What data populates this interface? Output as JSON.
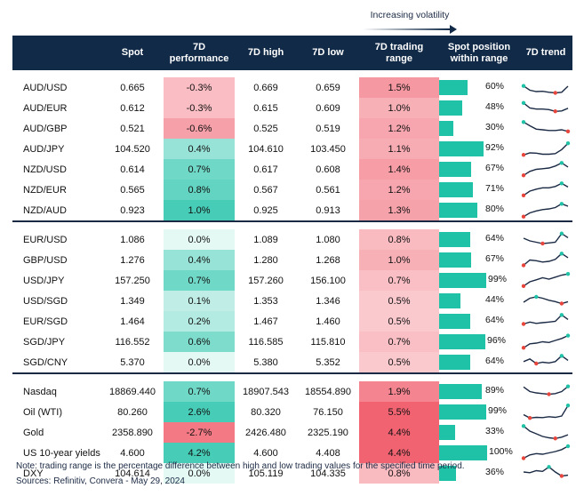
{
  "legend": {
    "label": "Increasing volatility"
  },
  "headers": {
    "spot": "Spot",
    "perf": "7D\nperformance",
    "high": "7D high",
    "low": "7D low",
    "range": "7D trading\nrange",
    "position": "Spot position\nwithin range",
    "trend": "7D trend"
  },
  "colors": {
    "header_bg": "#102a48",
    "bar": "#1fc2a7",
    "negative": "#f05b6a",
    "positive": "#1fc2a7",
    "sparkline": "#1b2a44",
    "max_marker": "#1fc2a7",
    "min_marker": "#e8453c"
  },
  "groups": [
    {
      "rows": [
        {
          "pair": "AUD/USD",
          "spot": "0.665",
          "perf": "-0.3%",
          "perf_value": -0.3,
          "high": "0.669",
          "low": "0.659",
          "range": "1.5%",
          "range_value": 1.5,
          "position": "60%",
          "position_value": 0.6,
          "trend": [
            0.62,
            0.3,
            0.2,
            0.22,
            0.15,
            0.1,
            0.15,
            0.6
          ]
        },
        {
          "pair": "AUD/EUR",
          "spot": "0.612",
          "perf": "-0.3%",
          "perf_value": -0.3,
          "high": "0.615",
          "low": "0.609",
          "range": "1.0%",
          "range_value": 1.0,
          "position": "48%",
          "position_value": 0.48,
          "trend": [
            0.88,
            0.5,
            0.42,
            0.42,
            0.38,
            0.25,
            0.28,
            0.48
          ]
        },
        {
          "pair": "AUD/GBP",
          "spot": "0.521",
          "perf": "-0.6%",
          "perf_value": -0.6,
          "high": "0.525",
          "low": "0.519",
          "range": "1.2%",
          "range_value": 1.2,
          "position": "30%",
          "position_value": 0.3,
          "trend": [
            0.98,
            0.7,
            0.45,
            0.4,
            0.35,
            0.35,
            0.4,
            0.28
          ]
        },
        {
          "pair": "AUD/JPY",
          "spot": "104.520",
          "perf": "0.4%",
          "perf_value": 0.4,
          "high": "104.610",
          "low": "103.450",
          "range": "1.1%",
          "range_value": 1.1,
          "position": "92%",
          "position_value": 0.92,
          "trend": [
            0.05,
            0.2,
            0.18,
            0.1,
            0.1,
            0.15,
            0.45,
            0.92
          ]
        },
        {
          "pair": "NZD/USD",
          "spot": "0.614",
          "perf": "0.7%",
          "perf_value": 0.7,
          "high": "0.617",
          "low": "0.608",
          "range": "1.4%",
          "range_value": 1.4,
          "position": "67%",
          "position_value": 0.67,
          "trend": [
            0.05,
            0.35,
            0.5,
            0.55,
            0.6,
            0.75,
            0.98,
            0.67
          ]
        },
        {
          "pair": "NZD/EUR",
          "spot": "0.565",
          "perf": "0.8%",
          "perf_value": 0.8,
          "high": "0.567",
          "low": "0.561",
          "range": "1.2%",
          "range_value": 1.2,
          "position": "71%",
          "position_value": 0.71,
          "trend": [
            0.08,
            0.4,
            0.55,
            0.65,
            0.65,
            0.75,
            0.98,
            0.71
          ]
        },
        {
          "pair": "NZD/AUD",
          "spot": "0.923",
          "perf": "1.0%",
          "perf_value": 1.0,
          "high": "0.925",
          "low": "0.913",
          "range": "1.3%",
          "range_value": 1.3,
          "position": "80%",
          "position_value": 0.8,
          "trend": [
            0.02,
            0.3,
            0.45,
            0.55,
            0.6,
            0.7,
            0.98,
            0.8
          ]
        }
      ]
    },
    {
      "rows": [
        {
          "pair": "EUR/USD",
          "spot": "1.086",
          "perf": "0.0%",
          "perf_value": 0.0,
          "high": "1.089",
          "low": "1.080",
          "range": "0.8%",
          "range_value": 0.8,
          "position": "64%",
          "position_value": 0.64,
          "trend": [
            0.6,
            0.4,
            0.3,
            0.2,
            0.25,
            0.3,
            0.95,
            0.64
          ]
        },
        {
          "pair": "GBP/USD",
          "spot": "1.276",
          "perf": "0.4%",
          "perf_value": 0.4,
          "high": "1.280",
          "low": "1.268",
          "range": "1.0%",
          "range_value": 1.0,
          "position": "67%",
          "position_value": 0.67,
          "trend": [
            0.1,
            0.5,
            0.45,
            0.35,
            0.4,
            0.55,
            0.98,
            0.67
          ]
        },
        {
          "pair": "USD/JPY",
          "spot": "157.250",
          "perf": "0.7%",
          "perf_value": 0.7,
          "high": "157.260",
          "low": "156.100",
          "range": "0.7%",
          "range_value": 0.7,
          "position": "99%",
          "position_value": 0.99,
          "trend": [
            0.08,
            0.4,
            0.55,
            0.7,
            0.6,
            0.75,
            0.9,
            0.99
          ]
        },
        {
          "pair": "USD/SGD",
          "spot": "1.349",
          "perf": "0.1%",
          "perf_value": 0.1,
          "high": "1.353",
          "low": "1.346",
          "range": "0.5%",
          "range_value": 0.5,
          "position": "44%",
          "position_value": 0.44,
          "trend": [
            0.4,
            0.7,
            0.8,
            0.7,
            0.55,
            0.45,
            0.3,
            0.44
          ]
        },
        {
          "pair": "EUR/SGD",
          "spot": "1.464",
          "perf": "0.2%",
          "perf_value": 0.2,
          "high": "1.467",
          "low": "1.460",
          "range": "0.5%",
          "range_value": 0.5,
          "position": "64%",
          "position_value": 0.64,
          "trend": [
            0.3,
            0.45,
            0.35,
            0.4,
            0.45,
            0.5,
            0.98,
            0.64
          ]
        },
        {
          "pair": "SGD/JPY",
          "spot": "116.552",
          "perf": "0.6%",
          "perf_value": 0.6,
          "high": "116.585",
          "low": "115.810",
          "range": "0.7%",
          "range_value": 0.7,
          "position": "96%",
          "position_value": 0.96,
          "trend": [
            0.05,
            0.35,
            0.4,
            0.5,
            0.45,
            0.6,
            0.75,
            0.96
          ]
        },
        {
          "pair": "SGD/CNY",
          "spot": "5.370",
          "perf": "0.0%",
          "perf_value": 0.0,
          "high": "5.380",
          "low": "5.352",
          "range": "0.5%",
          "range_value": 0.5,
          "position": "64%",
          "position_value": 0.64,
          "trend": [
            0.55,
            0.75,
            0.4,
            0.5,
            0.45,
            0.55,
            0.98,
            0.64
          ]
        }
      ]
    },
    {
      "rows": [
        {
          "pair": "Nasdaq",
          "spot": "18869.440",
          "perf": "0.7%",
          "perf_value": 0.7,
          "high": "18907.543",
          "low": "18554.890",
          "range": "1.9%",
          "range_value": 1.9,
          "position": "89%",
          "position_value": 0.89,
          "trend": [
            0.85,
            0.5,
            0.4,
            0.35,
            0.3,
            0.35,
            0.5,
            0.89
          ]
        },
        {
          "pair": "Oil (WTI)",
          "spot": "80.260",
          "perf": "2.6%",
          "perf_value": 2.6,
          "high": "80.320",
          "low": "76.150",
          "range": "5.5%",
          "range_value": 5.5,
          "position": "99%",
          "position_value": 0.99,
          "trend": [
            0.3,
            0.05,
            0.1,
            0.08,
            0.15,
            0.1,
            0.2,
            0.99
          ]
        },
        {
          "pair": "Gold",
          "spot": "2358.890",
          "perf": "-2.7%",
          "perf_value": -2.7,
          "high": "2426.480",
          "low": "2325.190",
          "range": "4.4%",
          "range_value": 4.4,
          "position": "33%",
          "position_value": 0.33,
          "trend": [
            0.98,
            0.6,
            0.4,
            0.2,
            0.1,
            0.05,
            0.15,
            0.33
          ]
        },
        {
          "pair": "US 10-year yields",
          "spot": "4.600",
          "perf": "4.2%",
          "perf_value": 4.2,
          "high": "4.600",
          "low": "4.408",
          "range": "4.4%",
          "range_value": 4.4,
          "position": "100%",
          "position_value": 1.0,
          "trend": [
            0.1,
            0.35,
            0.45,
            0.4,
            0.5,
            0.6,
            0.75,
            1.0
          ]
        },
        {
          "pair": "DXY",
          "spot": "104.614",
          "perf": "0.0%",
          "perf_value": 0.0,
          "high": "105.119",
          "low": "104.335",
          "range": "0.8%",
          "range_value": 0.8,
          "position": "36%",
          "position_value": 0.36,
          "trend": [
            0.6,
            0.55,
            0.7,
            0.65,
            0.98,
            0.6,
            0.3,
            0.36
          ]
        }
      ]
    }
  ],
  "notes": {
    "note": "Note: trading range is the percentage difference between high and low trading values for the specified time period.",
    "sources": "Sources: Refinitiv, Convera - May 29, 2024"
  }
}
